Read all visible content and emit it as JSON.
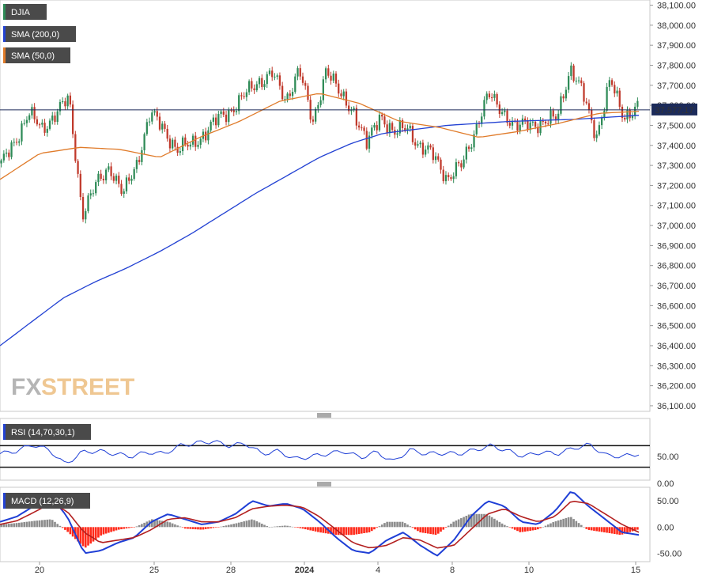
{
  "legend": {
    "djia": "DJIA",
    "sma200": "SMA (200,0)",
    "sma50": "SMA (50,0)",
    "rsi": "RSI (14,70,30,1)",
    "macd": "MACD (12,26,9)"
  },
  "logo": {
    "fx": "FX",
    "street": "STREET"
  },
  "last_price": "37,577.17",
  "colors": {
    "up": "#2e8b57",
    "down": "#c0392b",
    "sma200": "#2342d3",
    "sma50": "#e07b2a",
    "hist_pos": "#8c8c8c",
    "hist_neg": "#ff2a1a",
    "macd": "#1f3fd6",
    "signal": "#b32020",
    "price_label_bg": "#1c2b5a"
  },
  "chart_data": [
    {
      "type": "candlestick",
      "series_name": "DJIA",
      "y_ticks": [
        "38,100.00",
        "38,000.00",
        "37,900.00",
        "37,800.00",
        "37,700.00",
        "37,600.00",
        "37,500.00",
        "37,400.00",
        "37,300.00",
        "37,200.00",
        "37,100.00",
        "37,000.00",
        "36,900.00",
        "36,800.00",
        "36,700.00",
        "36,600.00",
        "36,500.00",
        "36,400.00",
        "36,300.00",
        "36,200.00",
        "36,100.00"
      ],
      "ylim": [
        36080,
        38110
      ],
      "x_ticks": [
        "20",
        "25",
        "28",
        "2024",
        "4",
        "8",
        "10",
        "15"
      ],
      "close_anchors": [
        37300,
        37420,
        37560,
        37480,
        37560,
        37630,
        37060,
        37200,
        37300,
        37150,
        37310,
        37560,
        37480,
        37380,
        37400,
        37460,
        37530,
        37580,
        37650,
        37720,
        37760,
        37620,
        37790,
        37500,
        37790,
        37650,
        37580,
        37400,
        37560,
        37450,
        37500,
        37380,
        37350,
        37230,
        37300,
        37480,
        37650,
        37580,
        37480,
        37520,
        37500,
        37540,
        37780,
        37650,
        37450,
        37720,
        37550,
        37580
      ],
      "sma200_anchors": [
        36400,
        36520,
        36640,
        36720,
        36790,
        36870,
        36960,
        37060,
        37160,
        37250,
        37340,
        37410,
        37460,
        37480,
        37500,
        37510,
        37520,
        37525,
        37530,
        37540,
        37550
      ],
      "sma50_anchors": [
        37230,
        37360,
        37390,
        37380,
        37340,
        37440,
        37520,
        37620,
        37660,
        37610,
        37520,
        37490,
        37440,
        37470,
        37510,
        37560,
        37570
      ],
      "last_price": 37577.17
    },
    {
      "type": "line",
      "series_name": "RSI",
      "y_ticks": [
        "50.00",
        "0.00"
      ],
      "upper_band": 70,
      "lower_band": 30,
      "values": [
        55,
        60,
        72,
        62,
        35,
        58,
        60,
        55,
        50,
        58,
        55,
        70,
        75,
        78,
        70,
        74,
        55,
        60,
        45,
        50,
        55,
        60,
        48,
        58,
        40,
        62,
        55,
        56,
        55,
        62,
        70,
        60,
        50,
        58,
        55,
        65,
        72,
        52,
        50,
        55
      ]
    },
    {
      "type": "macd",
      "series_name": "MACD",
      "y_ticks": [
        "50.00",
        "0.00",
        "-50.00"
      ],
      "ylim": [
        -60,
        70
      ],
      "macd": [
        10,
        20,
        40,
        60,
        20,
        -50,
        -45,
        -30,
        -20,
        10,
        25,
        15,
        5,
        10,
        25,
        50,
        40,
        45,
        35,
        10,
        -20,
        -45,
        -50,
        -25,
        -10,
        -35,
        -55,
        -25,
        20,
        50,
        40,
        10,
        5,
        30,
        70,
        40,
        15,
        -10,
        -15
      ],
      "signal": [
        5,
        12,
        28,
        45,
        30,
        -10,
        -30,
        -25,
        -20,
        -5,
        15,
        18,
        10,
        10,
        18,
        35,
        40,
        42,
        38,
        20,
        -5,
        -30,
        -40,
        -35,
        -20,
        -25,
        -40,
        -35,
        -5,
        25,
        35,
        20,
        10,
        20,
        50,
        45,
        25,
        5,
        -10
      ],
      "histogram": [
        5,
        8,
        12,
        15,
        -10,
        -40,
        -15,
        -5,
        0,
        15,
        10,
        -3,
        -5,
        0,
        7,
        15,
        0,
        3,
        -3,
        -10,
        -15,
        -15,
        -10,
        10,
        10,
        -10,
        -15,
        10,
        25,
        25,
        5,
        -10,
        -5,
        10,
        20,
        -5,
        -10,
        -15,
        -5
      ]
    }
  ]
}
